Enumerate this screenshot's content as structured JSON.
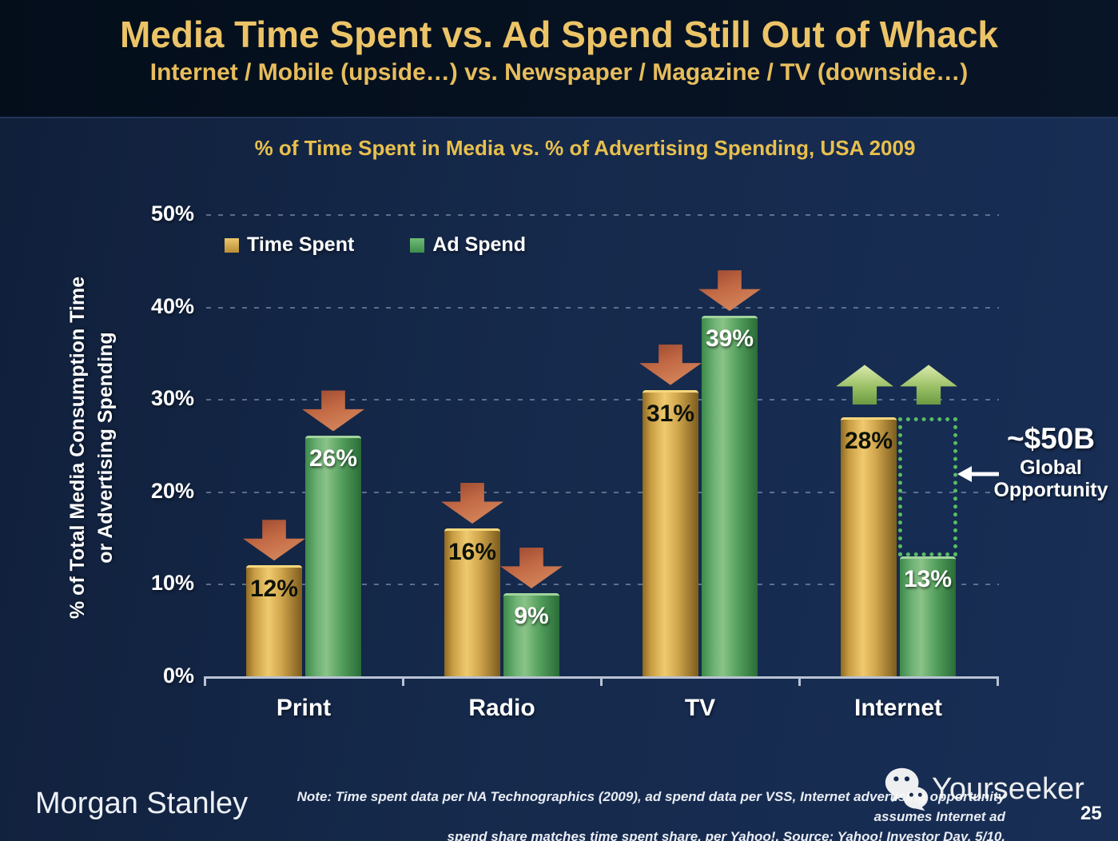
{
  "slide": {
    "title": "Media Time Spent vs. Ad Spend Still Out of Whack",
    "subtitle": "Internet / Mobile (upside…) vs. Newspaper / Magazine / TV (downside…)"
  },
  "chart_data": {
    "type": "bar",
    "title": "% of Time Spent in Media vs. % of Advertising Spending, USA 2009",
    "categories": [
      "Print",
      "Radio",
      "TV",
      "Internet"
    ],
    "series": [
      {
        "name": "Time Spent",
        "values": [
          12,
          16,
          31,
          28
        ],
        "color": "#e3b75c"
      },
      {
        "name": "Ad Spend",
        "values": [
          26,
          9,
          39,
          13
        ],
        "color": "#55a35d"
      }
    ],
    "value_suffix": "%",
    "ylabel_line1": "% of Total Media Consumption Time",
    "ylabel_line2": "or Advertising Spending",
    "ylim": [
      0,
      50
    ],
    "yticks": [
      "0%",
      "10%",
      "20%",
      "30%",
      "40%",
      "50%"
    ],
    "grid": "dotted-horizontal",
    "legend_position": "top-left-inside",
    "trends": [
      "down",
      "down",
      "down",
      "up"
    ],
    "gap_highlight": {
      "category": "Internet",
      "from_series": "Time Spent",
      "to_series": "Ad Spend"
    }
  },
  "annotation": {
    "amount": "~$50B",
    "line1": "Global",
    "line2": "Opportunity"
  },
  "footer": {
    "logo": "Morgan Stanley",
    "note_line1": "Note: Time spent data per NA Technographics (2009), ad spend data per VSS, Internet advertising opportunity assumes Internet ad",
    "note_line2": "spend share matches time spent share, per Yahoo!. Source: Yahoo! Investor Day, 5/10.",
    "watermark_text": "Yourseeker",
    "page_number": "25"
  },
  "colors": {
    "title_gold": "#ecc467",
    "chart_title_gold": "#e9c04e",
    "bar_gold": "#e3b75c",
    "bar_green": "#55a35d",
    "down_arrow": "#c36a45",
    "up_arrow": "#9cc167",
    "gap_box_green": "#58bb66",
    "background_top": "#040e1b",
    "background_main": "#15294b"
  }
}
